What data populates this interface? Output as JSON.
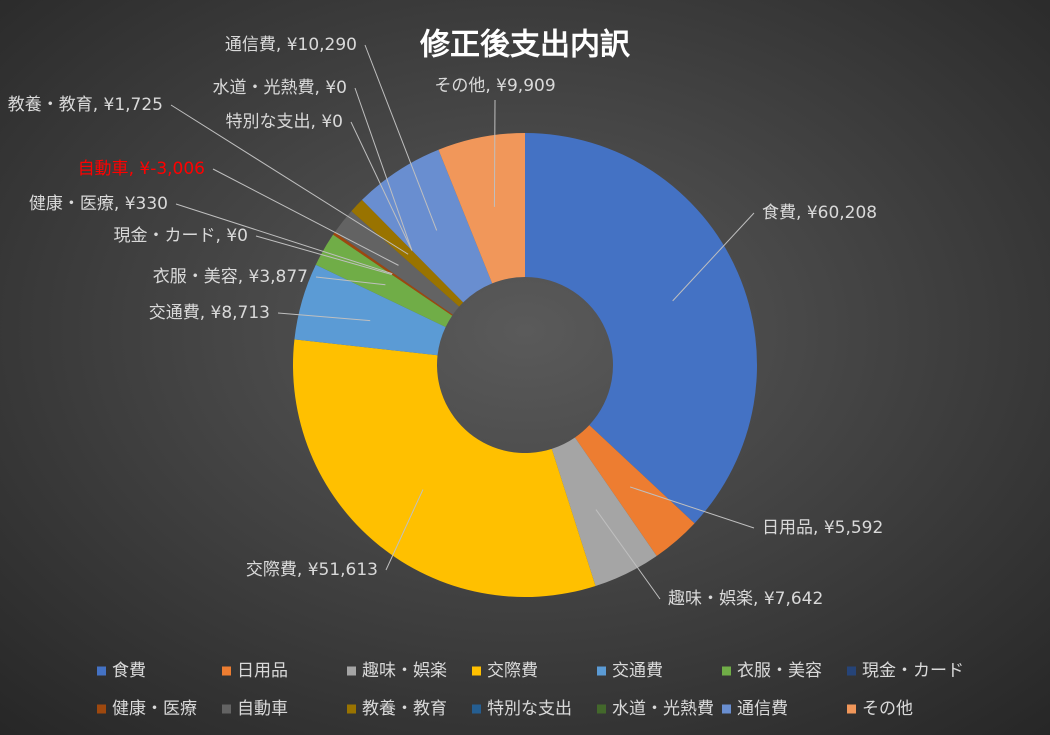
{
  "chart_data": {
    "type": "donut",
    "title": "修正後支出内訳",
    "categories": [
      "食費",
      "日用品",
      "趣味・娯楽",
      "交際費",
      "交通費",
      "衣服・美容",
      "現金・カード",
      "健康・医療",
      "自動車",
      "教養・教育",
      "特別な支出",
      "水道・光熱費",
      "通信費",
      "その他"
    ],
    "values": [
      60208,
      5592,
      7642,
      51613,
      8713,
      3877,
      0,
      330,
      -3006,
      1725,
      0,
      0,
      10290,
      9909
    ],
    "value_labels": [
      "¥60,208",
      "¥5,592",
      "¥7,642",
      "¥51,613",
      "¥8,713",
      "¥3,877",
      "¥0",
      "¥330",
      "¥-3,006",
      "¥1,725",
      "¥0",
      "¥0",
      "¥10,290",
      "¥9,909"
    ],
    "label_separator": ", ",
    "colors": [
      "#4472c4",
      "#ed7d31",
      "#a5a5a5",
      "#ffc000",
      "#5b9bd5",
      "#70ad47",
      "#264478",
      "#9e480e",
      "#636363",
      "#997300",
      "#255e91",
      "#43682b",
      "#698ed0",
      "#f1975a"
    ],
    "label_colors": [
      "#d9d9d9",
      "#d9d9d9",
      "#d9d9d9",
      "#d9d9d9",
      "#d9d9d9",
      "#d9d9d9",
      "#d9d9d9",
      "#d9d9d9",
      "#ff0000",
      "#d9d9d9",
      "#d9d9d9",
      "#d9d9d9",
      "#d9d9d9",
      "#d9d9d9"
    ],
    "legend": "bottom"
  }
}
